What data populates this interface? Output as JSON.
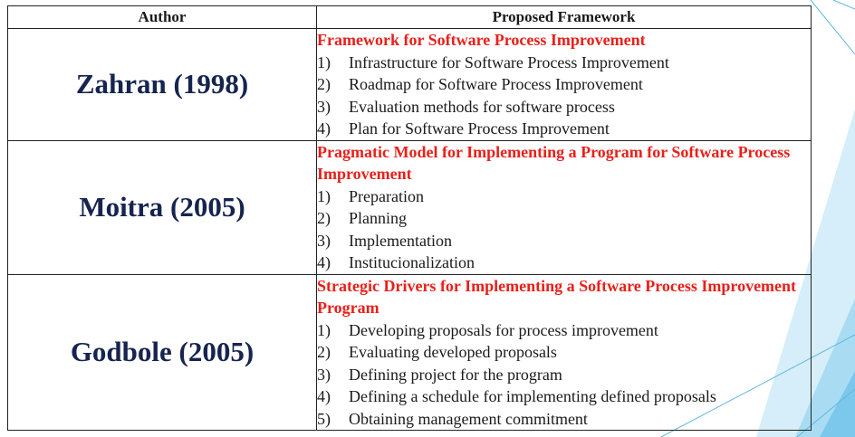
{
  "table": {
    "headers": {
      "author": "Author",
      "framework": "Proposed Framework"
    },
    "rows": [
      {
        "author": "Zahran (1998)",
        "framework_title": "Framework for Software Process Improvement",
        "steps": [
          {
            "num": "1)",
            "text": "Infrastructure for Software Process Improvement"
          },
          {
            "num": "2)",
            "text": "Roadmap for Software Process Improvement"
          },
          {
            "num": "3)",
            "text": "Evaluation methods for software process"
          },
          {
            "num": "4)",
            "text": "Plan for Software Process Improvement"
          }
        ]
      },
      {
        "author": "Moitra (2005)",
        "framework_title": "Pragmatic Model for Implementing a Program for Software Process Improvement",
        "steps": [
          {
            "num": "1)",
            "text": "Preparation"
          },
          {
            "num": "2)",
            "text": "Planning"
          },
          {
            "num": "3)",
            "text": "Implementation"
          },
          {
            "num": "4)",
            "text": "Institucionalization"
          }
        ]
      },
      {
        "author": "Godbole (2005)",
        "framework_title": "Strategic Drivers for Implementing a Software Process Improvement Program",
        "steps": [
          {
            "num": "1)",
            "text": "Developing proposals for process improvement"
          },
          {
            "num": "2)",
            "text": "Evaluating developed proposals"
          },
          {
            "num": "3)",
            "text": "Defining project for the program"
          },
          {
            "num": "4)",
            "text": "Defining a schedule for implementing defined proposals"
          },
          {
            "num": "5)",
            "text": "Obtaining management commitment"
          }
        ]
      }
    ]
  },
  "colors": {
    "author_text": "#16244f",
    "framework_title": "#e8201a",
    "body_text": "#1a1a1a",
    "accent_light": "#d6eef9",
    "accent_mid": "#a9dcf2",
    "accent_line": "#5fb8e0"
  }
}
